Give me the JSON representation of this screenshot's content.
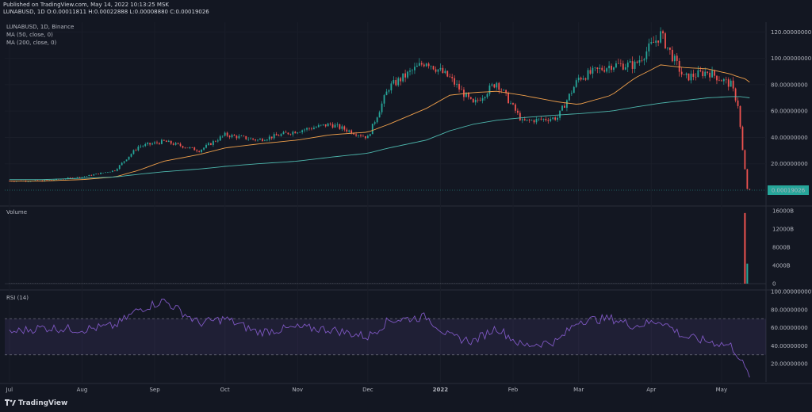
{
  "header": {
    "published": "Published on TradingView.com, May 14, 2022 10:13:25 MSK",
    "ohlc": "LUNABUSD, 1D, Binance",
    "ohlc_line": "LUNABUSD, 1D  O:0.00011811  H:0.00022888  L:0.00008880  C:0.00019026"
  },
  "legend": {
    "symbol": "LUNABUSD, 1D, Binance",
    "ma50": "MA (50, close, 0)",
    "ma200": "MA (200, close, 0)",
    "volume": "Volume",
    "rsi": "RSI (14)"
  },
  "last_price_label": "0.00019026",
  "footer": {
    "brand": "TradingView"
  },
  "colors": {
    "up": "#26a69a",
    "down": "#ef5350",
    "ma50": "#f0a04b",
    "ma200": "#4db6ac",
    "rsi": "#7e57c2",
    "bg": "#131722",
    "grid": "#1e222d"
  },
  "chart_data": [
    {
      "type": "candlestick",
      "title": "LUNABUSD, 1D, Binance",
      "x_ticks": [
        "Jul",
        "Aug",
        "Sep",
        "Oct",
        "Nov",
        "Dec",
        "2022",
        "Feb",
        "Mar",
        "Apr",
        "May"
      ],
      "y_ticks": [
        "120.00000000",
        "100.00000000",
        "80.00000000",
        "60.00000000",
        "40.00000000",
        "20.00000000"
      ],
      "ylim": [
        0,
        125
      ],
      "series": [
        {
          "name": "LUNABUSD close (approx.)",
          "x": [
            "2021-07-01",
            "2021-07-15",
            "2021-08-01",
            "2021-08-15",
            "2021-08-25",
            "2021-09-05",
            "2021-09-20",
            "2021-10-01",
            "2021-10-15",
            "2021-11-01",
            "2021-11-15",
            "2021-12-01",
            "2021-12-10",
            "2021-12-26",
            "2022-01-05",
            "2022-01-15",
            "2022-01-25",
            "2022-02-05",
            "2022-02-20",
            "2022-03-01",
            "2022-03-15",
            "2022-03-25",
            "2022-04-05",
            "2022-04-15",
            "2022-04-25",
            "2022-05-05",
            "2022-05-08",
            "2022-05-10",
            "2022-05-12",
            "2022-05-13"
          ],
          "values": [
            7,
            7,
            10,
            15,
            33,
            37,
            30,
            42,
            38,
            45,
            50,
            40,
            78,
            98,
            85,
            65,
            82,
            52,
            55,
            85,
            95,
            95,
            118,
            85,
            90,
            80,
            65,
            30,
            1,
            0.0002
          ]
        },
        {
          "name": "MA (50, close, 0)",
          "values": [
            7,
            7,
            8,
            10,
            15,
            22,
            27,
            32,
            35,
            38,
            42,
            44,
            50,
            62,
            72,
            74,
            75,
            72,
            67,
            65,
            72,
            85,
            95,
            93,
            92,
            88,
            86,
            85,
            84,
            82
          ]
        },
        {
          "name": "MA (200, close, 0)",
          "values": [
            8,
            8,
            9,
            10,
            12,
            14,
            16,
            18,
            20,
            22,
            25,
            28,
            32,
            38,
            45,
            50,
            53,
            55,
            57,
            58,
            60,
            63,
            66,
            68,
            70,
            71,
            71,
            71,
            70,
            70
          ]
        }
      ]
    },
    {
      "type": "bar",
      "title": "Volume",
      "y_ticks": [
        "16000B",
        "12000B",
        "8000B",
        "4000B",
        "0"
      ],
      "ylim": [
        0,
        16000
      ],
      "series": [
        {
          "name": "Volume",
          "x": [
            "2022-05-11",
            "2022-05-12"
          ],
          "values": [
            15500,
            4400
          ]
        }
      ]
    },
    {
      "type": "line",
      "title": "RSI (14)",
      "y_ticks": [
        "100.00000000",
        "80.00000000",
        "60.00000000",
        "40.00000000",
        "20.00000000"
      ],
      "ylim": [
        0,
        100
      ],
      "bands": [
        30,
        70
      ],
      "series": [
        {
          "name": "RSI (14)",
          "values": [
            55,
            60,
            58,
            62,
            80,
            90,
            65,
            70,
            55,
            60,
            58,
            50,
            68,
            72,
            50,
            45,
            60,
            40,
            45,
            68,
            70,
            62,
            68,
            50,
            45,
            40,
            30,
            20,
            10,
            8
          ]
        }
      ]
    }
  ]
}
